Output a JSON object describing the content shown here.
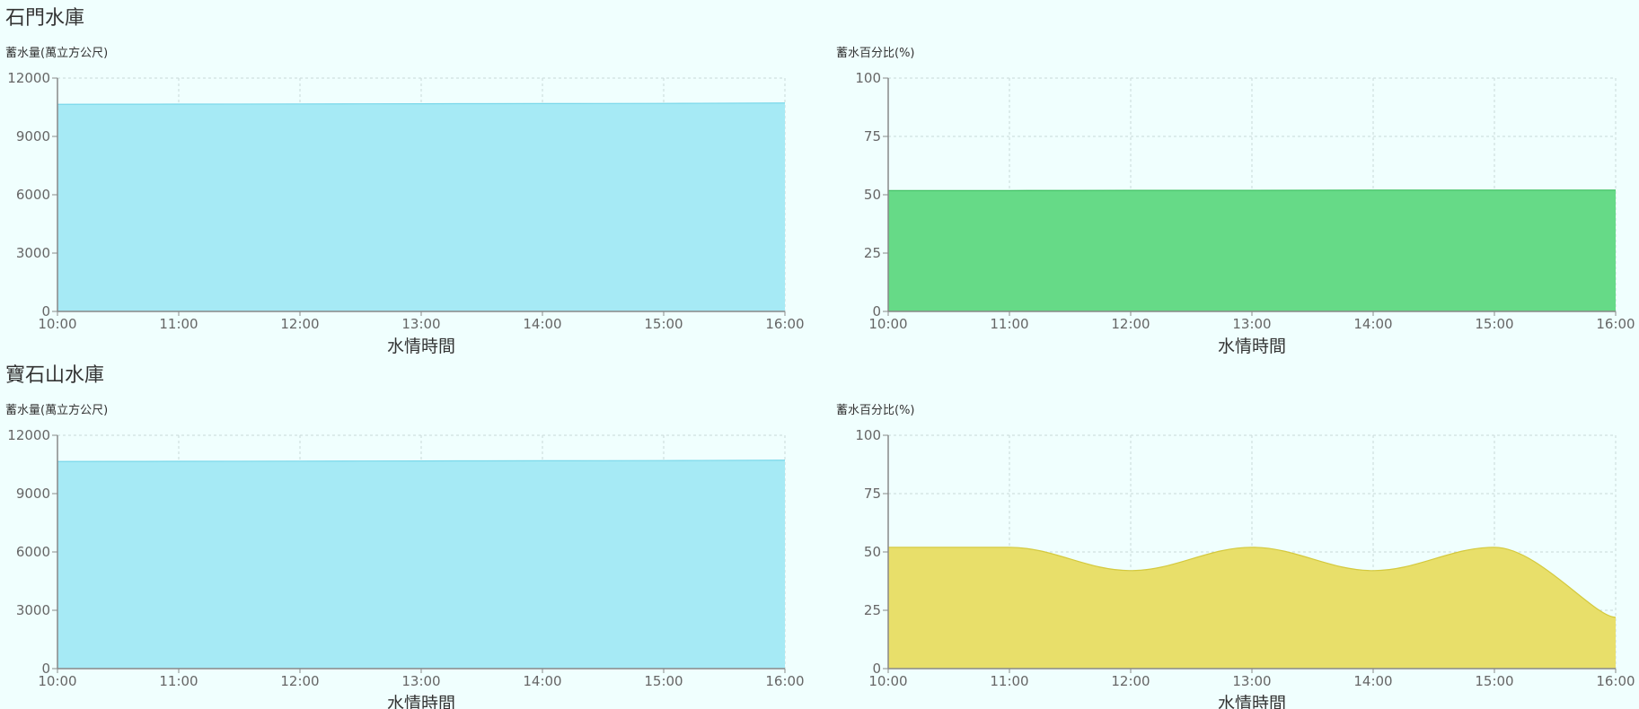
{
  "sections": [
    {
      "title": "石門水庫"
    },
    {
      "title": "寶石山水庫"
    }
  ],
  "chart_data": [
    {
      "type": "area",
      "section": "石門水庫",
      "ylabel": "蓄水量(萬立方公尺)",
      "xlabel": "水情時間",
      "x": [
        "10:00",
        "11:00",
        "12:00",
        "13:00",
        "14:00",
        "15:00",
        "16:00"
      ],
      "y_ticks": [
        "0",
        "3000",
        "6000",
        "9000",
        "12000"
      ],
      "ylim": [
        0,
        12000
      ],
      "series": [
        {
          "values": [
            10650,
            10660,
            10670,
            10680,
            10690,
            10700,
            10720
          ],
          "color": "#a6eaf5",
          "stroke": "#7ad8ea"
        }
      ],
      "grid": true
    },
    {
      "type": "area",
      "section": "石門水庫",
      "ylabel": "蓄水百分比(%)",
      "xlabel": "水情時間",
      "x": [
        "10:00",
        "11:00",
        "12:00",
        "13:00",
        "14:00",
        "15:00",
        "16:00"
      ],
      "y_ticks": [
        "0",
        "25",
        "50",
        "75",
        "100"
      ],
      "ylim": [
        0,
        100
      ],
      "series": [
        {
          "values": [
            51.8,
            51.8,
            51.9,
            51.9,
            52.0,
            52.0,
            52.0
          ],
          "color": "#66da87",
          "stroke": "#3cbf5f"
        }
      ],
      "grid": true
    },
    {
      "type": "area",
      "section": "寶石山水庫",
      "ylabel": "蓄水量(萬立方公尺)",
      "xlabel": "水情時間",
      "x": [
        "10:00",
        "11:00",
        "12:00",
        "13:00",
        "14:00",
        "15:00",
        "16:00"
      ],
      "y_ticks": [
        "0",
        "3000",
        "6000",
        "9000",
        "12000"
      ],
      "ylim": [
        0,
        12000
      ],
      "series": [
        {
          "values": [
            10650,
            10660,
            10670,
            10680,
            10690,
            10700,
            10720
          ],
          "color": "#a6eaf5",
          "stroke": "#7ad8ea"
        }
      ],
      "grid": true
    },
    {
      "type": "area",
      "section": "寶石山水庫",
      "ylabel": "蓄水百分比(%)",
      "xlabel": "水情時間",
      "x": [
        "10:00",
        "11:00",
        "12:00",
        "13:00",
        "14:00",
        "15:00",
        "16:00"
      ],
      "y_ticks": [
        "0",
        "25",
        "50",
        "75",
        "100"
      ],
      "ylim": [
        0,
        100
      ],
      "series": [
        {
          "values": [
            52,
            52,
            42,
            52,
            42,
            52,
            22
          ],
          "color": "#e8df6a",
          "stroke": "#d4c93e"
        }
      ],
      "grid": true
    }
  ]
}
